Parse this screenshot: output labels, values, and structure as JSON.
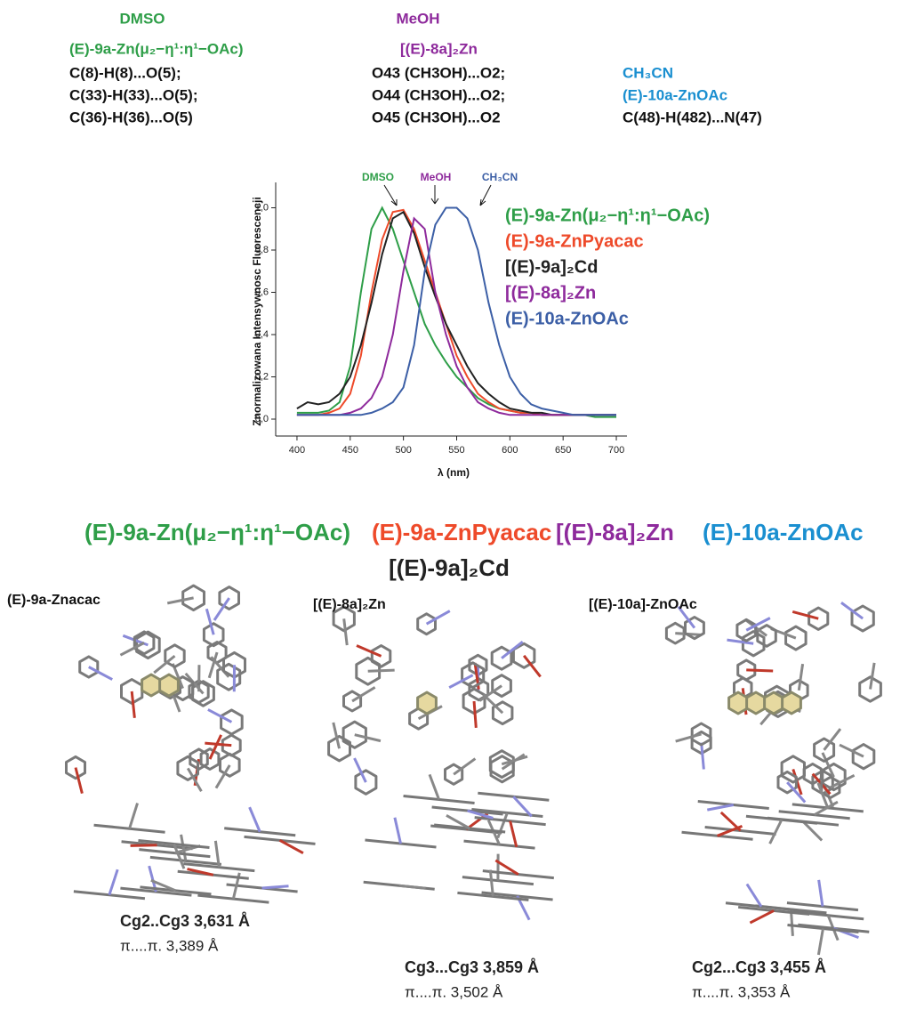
{
  "solvent_notes": [
    {
      "solvent": "DMSO",
      "compound": "(E)-9a-Zn(μ₂−η¹:η¹−OAc)",
      "contacts": [
        "C(8)-H(8)...O(5);",
        "C(33)-H(33)...O(5);",
        "C(36)-H(36)...O(5)"
      ]
    },
    {
      "solvent": "MeOH",
      "compound": "[(E)-8a]₂Zn",
      "contacts": [
        "O43 (CH3OH)...O2;",
        "O44 (CH3OH)...O2;",
        "O45 (CH3OH)...O2"
      ]
    },
    {
      "solvent": "CH₃CN",
      "compound": "(E)-10a-ZnOAc",
      "contacts": [
        "C(48)-H(482)...N(47)"
      ]
    }
  ],
  "chart_data": {
    "type": "line",
    "xlabel": "λ (nm)",
    "ylabel": "Znormalizowana  Intensywnosc Fluorescencji",
    "annotations": [
      "DMSO",
      "MeOH",
      "CH₃CN"
    ],
    "x": [
      400,
      410,
      420,
      430,
      440,
      450,
      460,
      470,
      480,
      490,
      500,
      510,
      520,
      530,
      540,
      550,
      560,
      570,
      580,
      590,
      600,
      610,
      620,
      630,
      640,
      650,
      660,
      670,
      680,
      690,
      700
    ],
    "series": [
      {
        "name": "(E)-9a-Zn(μ₂−η¹:η¹−OAc)",
        "color": "#2e9e48",
        "values": [
          0.03,
          0.03,
          0.03,
          0.04,
          0.08,
          0.25,
          0.6,
          0.9,
          1.0,
          0.9,
          0.75,
          0.6,
          0.45,
          0.35,
          0.27,
          0.2,
          0.15,
          0.1,
          0.07,
          0.05,
          0.04,
          0.03,
          0.03,
          0.02,
          0.02,
          0.02,
          0.02,
          0.02,
          0.01,
          0.01,
          0.01
        ]
      },
      {
        "name": "(E)-9a-ZnPyacac",
        "color": "#ee4a2a",
        "values": [
          0.02,
          0.02,
          0.02,
          0.03,
          0.05,
          0.12,
          0.3,
          0.6,
          0.85,
          0.98,
          0.99,
          0.9,
          0.75,
          0.6,
          0.45,
          0.3,
          0.2,
          0.12,
          0.08,
          0.05,
          0.04,
          0.03,
          0.03,
          0.02,
          0.02,
          0.02,
          0.02,
          0.02,
          0.02,
          0.02,
          0.02
        ]
      },
      {
        "name": "[(E)-9a]₂Cd",
        "color": "#222222",
        "values": [
          0.05,
          0.08,
          0.07,
          0.08,
          0.12,
          0.2,
          0.35,
          0.55,
          0.78,
          0.95,
          0.98,
          0.88,
          0.72,
          0.58,
          0.45,
          0.35,
          0.25,
          0.17,
          0.12,
          0.08,
          0.05,
          0.04,
          0.03,
          0.03,
          0.02,
          0.02,
          0.02,
          0.02,
          0.02,
          0.02,
          0.02
        ]
      },
      {
        "name": "[(E)-8a]₂Zn",
        "color": "#8e2a9c",
        "values": [
          0.02,
          0.02,
          0.02,
          0.02,
          0.02,
          0.03,
          0.05,
          0.1,
          0.2,
          0.4,
          0.7,
          0.95,
          0.9,
          0.6,
          0.4,
          0.25,
          0.15,
          0.08,
          0.05,
          0.03,
          0.02,
          0.02,
          0.02,
          0.02,
          0.02,
          0.02,
          0.02,
          0.02,
          0.02,
          0.02,
          0.02
        ]
      },
      {
        "name": "(E)-10a-ZnOAc",
        "color": "#3c5fa6",
        "values": [
          0.02,
          0.02,
          0.02,
          0.02,
          0.02,
          0.02,
          0.02,
          0.03,
          0.05,
          0.08,
          0.15,
          0.35,
          0.7,
          0.92,
          1.0,
          1.0,
          0.95,
          0.8,
          0.55,
          0.35,
          0.2,
          0.12,
          0.07,
          0.05,
          0.04,
          0.03,
          0.02,
          0.02,
          0.02,
          0.02,
          0.02
        ]
      }
    ],
    "xlim": [
      380,
      710
    ],
    "ylim": [
      -0.08,
      1.12
    ],
    "xticks": [
      400,
      450,
      500,
      550,
      600,
      650,
      700
    ],
    "yticks": [
      {
        "value": 0,
        "label": "0,0"
      },
      {
        "value": 0.2,
        "label": "0,2"
      },
      {
        "value": 0.4,
        "label": "0,4"
      },
      {
        "value": 0.6,
        "label": "0,6"
      },
      {
        "value": 0.8,
        "label": "0,8"
      },
      {
        "value": 1.0,
        "label": "1,0"
      }
    ],
    "grid": false
  },
  "panels": [
    {
      "label": "(E)-9a-Znacac",
      "distance": "Cg2..Cg3 3,631 Å",
      "pi_distance": "π....π.  3,389 Å"
    },
    {
      "label": "[(E)-8a]₂Zn",
      "distance": "Cg3...Cg3 3,859 Å",
      "pi_distance": "π....π.  3,502 Å"
    },
    {
      "label": "[(E)-10a]-ZnOAc",
      "distance": "Cg2...Cg3 3,455 Å",
      "pi_distance": "π....π.  3,353 Å"
    }
  ]
}
